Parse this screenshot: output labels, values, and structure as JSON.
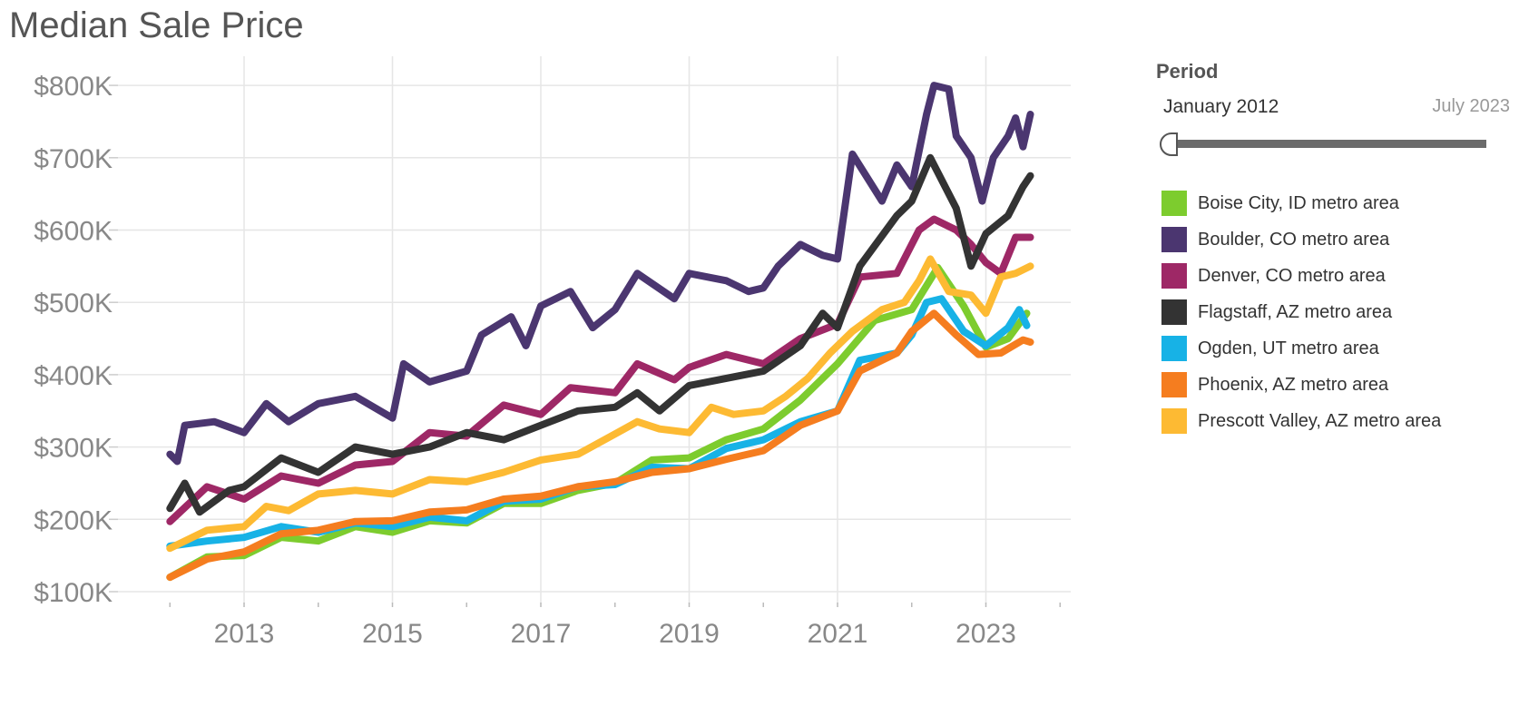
{
  "chart_data": {
    "type": "line",
    "title": "Median Sale Price",
    "xlabel": "",
    "ylabel": "",
    "ylim": [
      100000,
      800000
    ],
    "xlim": [
      2011.6,
      2024.3
    ],
    "y_ticks": [
      "$100K",
      "$200K",
      "$300K",
      "$400K",
      "$500K",
      "$600K",
      "$700K",
      "$800K"
    ],
    "x_ticks": [
      "2013",
      "2015",
      "2017",
      "2019",
      "2021",
      "2023"
    ],
    "grid": true,
    "legend_position": "right",
    "series": [
      {
        "name": "Boise City, ID metro area",
        "color": "#7dcc2e",
        "points": [
          [
            2012.0,
            120000
          ],
          [
            2012.5,
            148000
          ],
          [
            2013.0,
            150000
          ],
          [
            2013.5,
            175000
          ],
          [
            2014.0,
            170000
          ],
          [
            2014.5,
            190000
          ],
          [
            2015.0,
            182000
          ],
          [
            2015.5,
            198000
          ],
          [
            2016.0,
            195000
          ],
          [
            2016.5,
            222000
          ],
          [
            2017.0,
            222000
          ],
          [
            2017.5,
            240000
          ],
          [
            2018.0,
            250000
          ],
          [
            2018.5,
            282000
          ],
          [
            2019.0,
            285000
          ],
          [
            2019.5,
            310000
          ],
          [
            2020.0,
            325000
          ],
          [
            2020.5,
            365000
          ],
          [
            2021.0,
            415000
          ],
          [
            2021.5,
            475000
          ],
          [
            2022.0,
            490000
          ],
          [
            2022.35,
            548000
          ],
          [
            2022.7,
            495000
          ],
          [
            2023.0,
            438000
          ],
          [
            2023.3,
            450000
          ],
          [
            2023.55,
            485000
          ]
        ]
      },
      {
        "name": "Boulder, CO metro area",
        "color": "#4b3670",
        "points": [
          [
            2012.0,
            290000
          ],
          [
            2012.1,
            280000
          ],
          [
            2012.2,
            330000
          ],
          [
            2012.6,
            335000
          ],
          [
            2013.0,
            320000
          ],
          [
            2013.3,
            360000
          ],
          [
            2013.6,
            335000
          ],
          [
            2014.0,
            360000
          ],
          [
            2014.5,
            370000
          ],
          [
            2015.0,
            340000
          ],
          [
            2015.15,
            415000
          ],
          [
            2015.5,
            390000
          ],
          [
            2016.0,
            405000
          ],
          [
            2016.2,
            455000
          ],
          [
            2016.6,
            480000
          ],
          [
            2016.8,
            440000
          ],
          [
            2017.0,
            495000
          ],
          [
            2017.4,
            515000
          ],
          [
            2017.7,
            465000
          ],
          [
            2018.0,
            490000
          ],
          [
            2018.3,
            540000
          ],
          [
            2018.8,
            505000
          ],
          [
            2019.0,
            540000
          ],
          [
            2019.5,
            530000
          ],
          [
            2019.8,
            515000
          ],
          [
            2020.0,
            520000
          ],
          [
            2020.2,
            550000
          ],
          [
            2020.5,
            580000
          ],
          [
            2020.8,
            565000
          ],
          [
            2021.0,
            560000
          ],
          [
            2021.2,
            705000
          ],
          [
            2021.6,
            640000
          ],
          [
            2021.8,
            690000
          ],
          [
            2022.0,
            660000
          ],
          [
            2022.2,
            760000
          ],
          [
            2022.3,
            800000
          ],
          [
            2022.5,
            795000
          ],
          [
            2022.6,
            730000
          ],
          [
            2022.8,
            700000
          ],
          [
            2022.95,
            640000
          ],
          [
            2023.1,
            700000
          ],
          [
            2023.3,
            730000
          ],
          [
            2023.4,
            755000
          ],
          [
            2023.5,
            715000
          ],
          [
            2023.6,
            760000
          ]
        ]
      },
      {
        "name": "Denver, CO metro area",
        "color": "#9e2866",
        "points": [
          [
            2012.0,
            197000
          ],
          [
            2012.5,
            245000
          ],
          [
            2013.0,
            228000
          ],
          [
            2013.5,
            260000
          ],
          [
            2014.0,
            250000
          ],
          [
            2014.5,
            275000
          ],
          [
            2015.0,
            280000
          ],
          [
            2015.5,
            320000
          ],
          [
            2016.0,
            315000
          ],
          [
            2016.5,
            358000
          ],
          [
            2017.0,
            345000
          ],
          [
            2017.4,
            382000
          ],
          [
            2018.0,
            375000
          ],
          [
            2018.3,
            415000
          ],
          [
            2018.8,
            393000
          ],
          [
            2019.0,
            410000
          ],
          [
            2019.5,
            428000
          ],
          [
            2020.0,
            415000
          ],
          [
            2020.5,
            450000
          ],
          [
            2021.0,
            470000
          ],
          [
            2021.3,
            535000
          ],
          [
            2021.8,
            540000
          ],
          [
            2022.1,
            600000
          ],
          [
            2022.3,
            615000
          ],
          [
            2022.6,
            600000
          ],
          [
            2022.8,
            580000
          ],
          [
            2023.0,
            555000
          ],
          [
            2023.2,
            540000
          ],
          [
            2023.4,
            590000
          ],
          [
            2023.6,
            590000
          ]
        ]
      },
      {
        "name": "Flagstaff, AZ metro area",
        "color": "#333333",
        "points": [
          [
            2012.0,
            215000
          ],
          [
            2012.2,
            250000
          ],
          [
            2012.4,
            210000
          ],
          [
            2012.8,
            240000
          ],
          [
            2013.0,
            245000
          ],
          [
            2013.5,
            285000
          ],
          [
            2014.0,
            265000
          ],
          [
            2014.5,
            300000
          ],
          [
            2015.0,
            290000
          ],
          [
            2015.5,
            300000
          ],
          [
            2016.0,
            320000
          ],
          [
            2016.5,
            310000
          ],
          [
            2017.0,
            330000
          ],
          [
            2017.5,
            350000
          ],
          [
            2018.0,
            355000
          ],
          [
            2018.3,
            375000
          ],
          [
            2018.6,
            350000
          ],
          [
            2019.0,
            385000
          ],
          [
            2019.5,
            395000
          ],
          [
            2020.0,
            405000
          ],
          [
            2020.5,
            440000
          ],
          [
            2020.8,
            485000
          ],
          [
            2021.0,
            465000
          ],
          [
            2021.3,
            550000
          ],
          [
            2021.8,
            620000
          ],
          [
            2022.0,
            640000
          ],
          [
            2022.25,
            700000
          ],
          [
            2022.6,
            630000
          ],
          [
            2022.8,
            550000
          ],
          [
            2023.0,
            595000
          ],
          [
            2023.3,
            620000
          ],
          [
            2023.5,
            660000
          ],
          [
            2023.6,
            675000
          ]
        ]
      },
      {
        "name": "Ogden, UT metro area",
        "color": "#17b2e6",
        "points": [
          [
            2012.0,
            163000
          ],
          [
            2012.5,
            170000
          ],
          [
            2013.0,
            175000
          ],
          [
            2013.5,
            190000
          ],
          [
            2014.0,
            182000
          ],
          [
            2014.5,
            195000
          ],
          [
            2015.0,
            190000
          ],
          [
            2015.5,
            203000
          ],
          [
            2016.0,
            198000
          ],
          [
            2016.5,
            225000
          ],
          [
            2017.0,
            228000
          ],
          [
            2017.5,
            245000
          ],
          [
            2018.0,
            248000
          ],
          [
            2018.5,
            272000
          ],
          [
            2019.0,
            270000
          ],
          [
            2019.5,
            298000
          ],
          [
            2020.0,
            310000
          ],
          [
            2020.5,
            335000
          ],
          [
            2021.0,
            350000
          ],
          [
            2021.3,
            420000
          ],
          [
            2021.8,
            430000
          ],
          [
            2022.0,
            455000
          ],
          [
            2022.2,
            500000
          ],
          [
            2022.4,
            505000
          ],
          [
            2022.7,
            460000
          ],
          [
            2023.0,
            440000
          ],
          [
            2023.3,
            465000
          ],
          [
            2023.45,
            490000
          ],
          [
            2023.55,
            468000
          ]
        ]
      },
      {
        "name": "Phoenix, AZ metro area",
        "color": "#f57d1f",
        "points": [
          [
            2012.0,
            120000
          ],
          [
            2012.5,
            145000
          ],
          [
            2013.0,
            155000
          ],
          [
            2013.5,
            180000
          ],
          [
            2014.0,
            185000
          ],
          [
            2014.5,
            197000
          ],
          [
            2015.0,
            198000
          ],
          [
            2015.5,
            210000
          ],
          [
            2016.0,
            213000
          ],
          [
            2016.5,
            228000
          ],
          [
            2017.0,
            232000
          ],
          [
            2017.5,
            245000
          ],
          [
            2018.0,
            252000
          ],
          [
            2018.5,
            265000
          ],
          [
            2019.0,
            270000
          ],
          [
            2019.5,
            283000
          ],
          [
            2020.0,
            295000
          ],
          [
            2020.5,
            330000
          ],
          [
            2021.0,
            350000
          ],
          [
            2021.3,
            405000
          ],
          [
            2021.8,
            430000
          ],
          [
            2022.0,
            460000
          ],
          [
            2022.3,
            485000
          ],
          [
            2022.6,
            455000
          ],
          [
            2022.9,
            428000
          ],
          [
            2023.2,
            430000
          ],
          [
            2023.5,
            448000
          ],
          [
            2023.6,
            445000
          ]
        ]
      },
      {
        "name": "Prescott Valley, AZ metro area",
        "color": "#fdba33",
        "points": [
          [
            2012.0,
            160000
          ],
          [
            2012.5,
            185000
          ],
          [
            2013.0,
            190000
          ],
          [
            2013.3,
            218000
          ],
          [
            2013.6,
            212000
          ],
          [
            2014.0,
            235000
          ],
          [
            2014.5,
            240000
          ],
          [
            2015.0,
            235000
          ],
          [
            2015.5,
            255000
          ],
          [
            2016.0,
            252000
          ],
          [
            2016.5,
            265000
          ],
          [
            2017.0,
            282000
          ],
          [
            2017.5,
            290000
          ],
          [
            2018.0,
            318000
          ],
          [
            2018.3,
            335000
          ],
          [
            2018.6,
            325000
          ],
          [
            2019.0,
            320000
          ],
          [
            2019.3,
            355000
          ],
          [
            2019.6,
            345000
          ],
          [
            2020.0,
            350000
          ],
          [
            2020.3,
            370000
          ],
          [
            2020.6,
            395000
          ],
          [
            2020.9,
            430000
          ],
          [
            2021.2,
            460000
          ],
          [
            2021.6,
            490000
          ],
          [
            2021.9,
            500000
          ],
          [
            2022.1,
            530000
          ],
          [
            2022.25,
            560000
          ],
          [
            2022.5,
            515000
          ],
          [
            2022.8,
            510000
          ],
          [
            2023.0,
            485000
          ],
          [
            2023.2,
            535000
          ],
          [
            2023.4,
            540000
          ],
          [
            2023.6,
            550000
          ]
        ]
      }
    ]
  },
  "period": {
    "title": "Period",
    "start_label": "January 2012",
    "end_label": "July 2023",
    "selected_fraction": 0
  }
}
